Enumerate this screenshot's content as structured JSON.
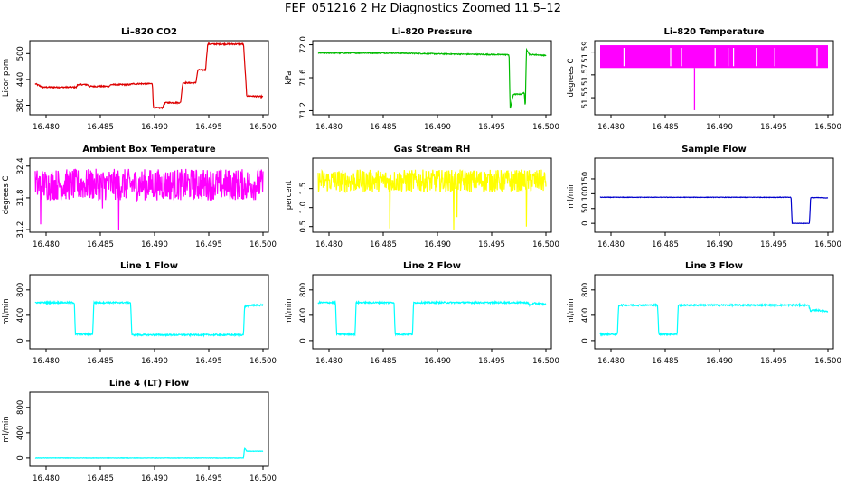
{
  "page": {
    "title": "FEF_051216  2 Hz Diagnostics Zoomed 11.5–12"
  },
  "x_ticks": [
    "16.480",
    "16.485",
    "16.490",
    "16.495",
    "16.500"
  ],
  "chart_data": [
    {
      "type": "line",
      "title": "Li–820 CO2",
      "ylabel": "Licor ppm",
      "color": "#dd0000",
      "xlim": [
        16.4785,
        16.5005
      ],
      "ylim": [
        358,
        530
      ],
      "yticks": [
        380,
        440,
        500
      ],
      "yticklabels": [
        "380",
        "440",
        "500"
      ],
      "x": [
        16.479,
        16.4797,
        16.48,
        16.4828,
        16.4829,
        16.4838,
        16.484,
        16.4858,
        16.486,
        16.4877,
        16.488,
        16.4898,
        16.4899,
        16.4907,
        16.491,
        16.4915,
        16.4917,
        16.4924,
        16.4926,
        16.4938,
        16.494,
        16.4947,
        16.4949,
        16.4982,
        16.4985,
        16.5
      ],
      "values": [
        430,
        422,
        422,
        422,
        428,
        428,
        424,
        424,
        428,
        428,
        430,
        430,
        374,
        374,
        386,
        386,
        386,
        386,
        432,
        432,
        462,
        462,
        522,
        522,
        402,
        400
      ],
      "noise": 1.5
    },
    {
      "type": "line",
      "title": "Li–820 Pressure",
      "ylabel": "kPa",
      "color": "#00bb00",
      "xlim": [
        16.4785,
        16.5005
      ],
      "ylim": [
        71.15,
        72.05
      ],
      "yticks": [
        71.2,
        71.6,
        72.0
      ],
      "yticklabels": [
        "71.2",
        "71.6",
        "72.0"
      ],
      "x": [
        16.479,
        16.481,
        16.486,
        16.49,
        16.496,
        16.4966,
        16.4967,
        16.497,
        16.4977,
        16.498,
        16.4981,
        16.4982,
        16.4985,
        16.499,
        16.5
      ],
      "values": [
        71.9,
        71.9,
        71.9,
        71.89,
        71.88,
        71.88,
        71.22,
        71.4,
        71.4,
        71.42,
        71.22,
        71.95,
        71.88,
        71.88,
        71.87
      ],
      "noise": 0.006
    },
    {
      "type": "band",
      "title": "Li–820 Temperature",
      "ylabel": "degrees C",
      "color": "#ff00ff",
      "xlim": [
        16.4785,
        16.5005
      ],
      "ylim": [
        51.535,
        51.6
      ],
      "yticks": [
        51.55,
        51.57,
        51.59
      ],
      "yticklabels": [
        "51.55",
        "51.57",
        "51.59"
      ],
      "x": [
        16.479,
        16.5
      ],
      "band": [
        51.576,
        51.596
      ],
      "spikes": [
        {
          "x": 16.4877,
          "value": 51.539
        }
      ],
      "gaps": [
        16.4812,
        16.4855,
        16.4865,
        16.4896,
        16.4908,
        16.4913,
        16.4934,
        16.4951,
        16.499
      ]
    },
    {
      "type": "line",
      "title": "Ambient Box Temperature",
      "ylabel": "degrees C",
      "color": "#ff00ff",
      "xlim": [
        16.4785,
        16.5005
      ],
      "ylim": [
        31.15,
        32.55
      ],
      "yticks": [
        31.2,
        31.8,
        32.4
      ],
      "yticklabels": [
        "31.2",
        "31.8",
        "32.4"
      ],
      "x": [
        16.479,
        16.5
      ],
      "values": [
        32.05,
        32.05
      ],
      "noise": 0.3,
      "spikes": [
        {
          "x": 16.4795,
          "value": 31.3
        },
        {
          "x": 16.4867,
          "value": 31.2
        },
        {
          "x": 16.4852,
          "value": 31.6
        }
      ]
    },
    {
      "type": "line",
      "title": "Gas Stream RH",
      "ylabel": "percent",
      "color": "#ffff00",
      "xlim": [
        16.4785,
        16.5005
      ],
      "ylim": [
        0.35,
        2.3
      ],
      "yticks": [
        0.5,
        1.0,
        1.5
      ],
      "yticklabels": [
        "0.5",
        "1.0",
        "1.5"
      ],
      "x": [
        16.479,
        16.5
      ],
      "values": [
        1.7,
        1.7
      ],
      "noise": 0.3,
      "spikes": [
        {
          "x": 16.4856,
          "value": 0.45
        },
        {
          "x": 16.4915,
          "value": 0.4
        },
        {
          "x": 16.4918,
          "value": 0.75
        },
        {
          "x": 16.4982,
          "value": 0.5
        }
      ]
    },
    {
      "type": "line",
      "title": "Sample Flow",
      "ylabel": "ml/min",
      "color": "#0000cc",
      "xlim": [
        16.4785,
        16.5005
      ],
      "ylim": [
        -30,
        220
      ],
      "yticks": [
        0,
        50,
        100,
        150
      ],
      "yticklabels": [
        "0",
        "50",
        "100",
        "150"
      ],
      "x": [
        16.479,
        16.485,
        16.49,
        16.4966,
        16.4967,
        16.497,
        16.4983,
        16.4984,
        16.499,
        16.5
      ],
      "values": [
        88,
        88,
        88,
        88,
        0,
        0,
        0,
        87,
        87,
        86
      ],
      "noise": 0.8
    },
    {
      "type": "line",
      "title": "Line 1 Flow",
      "ylabel": "ml/min",
      "color": "#00ffff",
      "xlim": [
        16.4785,
        16.5005
      ],
      "ylim": [
        -130,
        1040
      ],
      "yticks": [
        0,
        400,
        800
      ],
      "yticklabels": [
        "0",
        "400",
        "800"
      ],
      "x": [
        16.479,
        16.4826,
        16.4827,
        16.4843,
        16.4844,
        16.4878,
        16.4879,
        16.4982,
        16.4983,
        16.499,
        16.5
      ],
      "values": [
        600,
        600,
        100,
        100,
        600,
        600,
        90,
        90,
        540,
        560,
        560
      ],
      "noise": 12
    },
    {
      "type": "line",
      "title": "Line 2 Flow",
      "ylabel": "ml/min",
      "color": "#00ffff",
      "xlim": [
        16.4785,
        16.5005
      ],
      "ylim": [
        -130,
        1040
      ],
      "yticks": [
        0,
        400,
        800
      ],
      "yticklabels": [
        "0",
        "400",
        "800"
      ],
      "x": [
        16.479,
        16.4806,
        16.4807,
        16.4824,
        16.4825,
        16.486,
        16.4861,
        16.4877,
        16.4878,
        16.4983,
        16.4985,
        16.499,
        16.5
      ],
      "values": [
        600,
        600,
        100,
        100,
        600,
        600,
        100,
        100,
        600,
        600,
        560,
        590,
        570
      ],
      "noise": 12
    },
    {
      "type": "line",
      "title": "Line 3 Flow",
      "ylabel": "ml/min",
      "color": "#00ffff",
      "xlim": [
        16.4785,
        16.5005
      ],
      "ylim": [
        -130,
        1040
      ],
      "yticks": [
        0,
        400,
        800
      ],
      "yticklabels": [
        "0",
        "400",
        "800"
      ],
      "x": [
        16.479,
        16.4806,
        16.4807,
        16.4843,
        16.4844,
        16.4861,
        16.4862,
        16.4982,
        16.4984,
        16.499,
        16.5
      ],
      "values": [
        100,
        100,
        560,
        560,
        100,
        100,
        560,
        560,
        470,
        480,
        460
      ],
      "noise": 12
    },
    {
      "type": "line",
      "title": "Line 4 (LT) Flow",
      "ylabel": "ml/min",
      "color": "#00ffff",
      "xlim": [
        16.4785,
        16.5005
      ],
      "ylim": [
        -130,
        1040
      ],
      "yticks": [
        0,
        400,
        800
      ],
      "yticklabels": [
        "0",
        "400",
        "800"
      ],
      "x": [
        16.479,
        16.4982,
        16.4983,
        16.4985,
        16.5
      ],
      "values": [
        0,
        0,
        160,
        110,
        110
      ],
      "noise": 3
    }
  ]
}
